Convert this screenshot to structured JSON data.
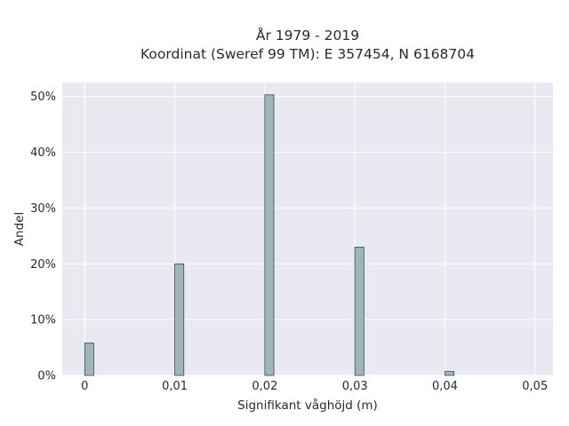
{
  "chart_data": {
    "type": "bar",
    "title_lines": [
      "År 1979 - 2019",
      "Koordinat (Sweref 99 TM): E 357454, N 6168704"
    ],
    "xlabel": "Signifikant våghöjd (m)",
    "ylabel": "Andel",
    "x": [
      0,
      0.01,
      0.02,
      0.03,
      0.04
    ],
    "values": [
      5.8,
      20.0,
      50.3,
      23.0,
      0.7
    ],
    "x_ticks": [
      "0",
      "0,01",
      "0,02",
      "0,03",
      "0,04",
      "0,05"
    ],
    "y_ticks": [
      "0%",
      "10%",
      "20%",
      "30%",
      "40%",
      "50%"
    ],
    "xlim": [
      -0.0025,
      0.052
    ],
    "ylim": [
      0,
      52.5
    ],
    "grid": true,
    "colors": {
      "plot_background": "#e9e9f1",
      "grid": "#ffffff",
      "bar_fill": "#9fb6b6",
      "bar_edge": "#3d4a4a"
    }
  }
}
